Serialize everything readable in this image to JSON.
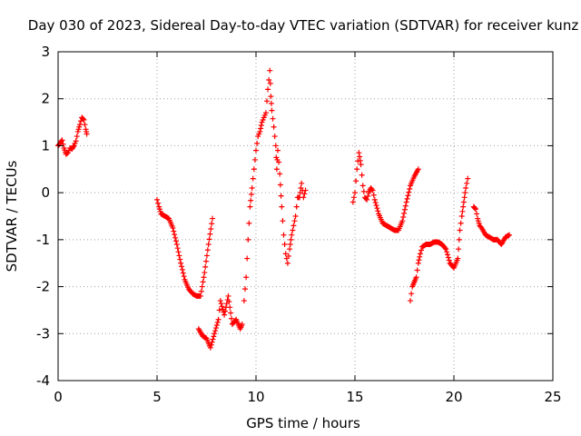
{
  "chart_data": {
    "type": "scatter",
    "title": "Day 030 of 2023, Sidereal Day-to-day VTEC variation (SDTVAR) for receiver kunz",
    "xlabel": "GPS time / hours",
    "ylabel": "SDTVAR / TECUs",
    "xlim": [
      0,
      25
    ],
    "ylim": [
      -4,
      3
    ],
    "xticks": [
      0,
      5,
      10,
      15,
      20,
      25
    ],
    "yticks": [
      -4,
      -3,
      -2,
      -1,
      0,
      1,
      2,
      3
    ],
    "grid": true,
    "marker": "+",
    "colors": {
      "series": "#ff0000",
      "grid": "#a0a0a0",
      "axis": "#000000"
    },
    "series": [
      {
        "name": "SDTVAR",
        "segments": [
          [
            [
              0.0,
              1.0
            ],
            [
              0.1,
              1.05
            ],
            [
              0.2,
              1.12
            ],
            [
              0.3,
              0.95
            ],
            [
              0.4,
              0.82
            ],
            [
              0.5,
              0.85
            ],
            [
              0.6,
              0.95
            ],
            [
              0.7,
              0.93
            ],
            [
              0.8,
              1.0
            ],
            [
              0.9,
              1.1
            ],
            [
              1.0,
              1.3
            ],
            [
              1.1,
              1.45
            ],
            [
              1.2,
              1.6
            ],
            [
              1.3,
              1.55
            ],
            [
              1.4,
              1.35
            ],
            [
              1.45,
              1.25
            ]
          ],
          [
            [
              5.0,
              -0.15
            ],
            [
              5.1,
              -0.3
            ],
            [
              5.2,
              -0.45
            ],
            [
              5.4,
              -0.5
            ],
            [
              5.6,
              -0.55
            ],
            [
              5.8,
              -0.75
            ],
            [
              6.0,
              -1.1
            ],
            [
              6.2,
              -1.5
            ],
            [
              6.4,
              -1.85
            ],
            [
              6.6,
              -2.05
            ],
            [
              6.8,
              -2.15
            ],
            [
              7.0,
              -2.2
            ],
            [
              7.2,
              -2.2
            ],
            [
              7.4,
              -1.7
            ],
            [
              7.6,
              -1.1
            ],
            [
              7.8,
              -0.55
            ]
          ],
          [
            [
              7.1,
              -2.9
            ],
            [
              7.3,
              -3.05
            ],
            [
              7.5,
              -3.1
            ],
            [
              7.7,
              -3.3
            ],
            [
              7.9,
              -3.0
            ],
            [
              8.1,
              -2.7
            ],
            [
              8.2,
              -2.3
            ],
            [
              8.4,
              -2.6
            ],
            [
              8.6,
              -2.2
            ],
            [
              8.8,
              -2.8
            ],
            [
              9.0,
              -2.7
            ],
            [
              9.2,
              -2.9
            ],
            [
              9.3,
              -2.8
            ]
          ],
          [
            [
              9.4,
              -2.3
            ],
            [
              9.5,
              -1.8
            ],
            [
              9.6,
              -1.0
            ],
            [
              9.7,
              -0.3
            ],
            [
              9.8,
              0.1
            ],
            [
              9.9,
              0.5
            ],
            [
              10.0,
              0.9
            ],
            [
              10.1,
              1.2
            ],
            [
              10.2,
              1.3
            ],
            [
              10.3,
              1.5
            ],
            [
              10.4,
              1.6
            ],
            [
              10.5,
              1.7
            ],
            [
              10.6,
              2.2
            ],
            [
              10.7,
              2.6
            ],
            [
              10.75,
              2.05
            ],
            [
              10.8,
              1.75
            ],
            [
              10.9,
              1.4
            ],
            [
              11.0,
              1.0
            ],
            [
              11.05,
              0.5
            ],
            [
              11.1,
              0.9
            ],
            [
              11.2,
              0.4
            ],
            [
              11.3,
              -0.3
            ],
            [
              11.4,
              -0.9
            ],
            [
              11.5,
              -1.3
            ],
            [
              11.6,
              -1.5
            ],
            [
              11.7,
              -1.2
            ],
            [
              11.8,
              -0.9
            ],
            [
              11.9,
              -0.7
            ],
            [
              12.0,
              -0.5
            ],
            [
              12.1,
              -0.1
            ],
            [
              12.2,
              -0.1
            ],
            [
              12.3,
              0.2
            ],
            [
              12.4,
              -0.1
            ],
            [
              12.5,
              0.05
            ]
          ],
          [
            [
              14.9,
              -0.2
            ],
            [
              15.0,
              0.0
            ],
            [
              15.1,
              0.5
            ],
            [
              15.2,
              0.85
            ],
            [
              15.3,
              0.6
            ],
            [
              15.4,
              0.15
            ],
            [
              15.5,
              -0.1
            ],
            [
              15.6,
              -0.15
            ],
            [
              15.7,
              0.0
            ],
            [
              15.8,
              0.1
            ],
            [
              15.9,
              0.05
            ],
            [
              16.0,
              -0.15
            ],
            [
              16.2,
              -0.45
            ],
            [
              16.4,
              -0.65
            ],
            [
              16.6,
              -0.7
            ],
            [
              16.8,
              -0.75
            ],
            [
              17.0,
              -0.8
            ],
            [
              17.2,
              -0.8
            ],
            [
              17.4,
              -0.6
            ],
            [
              17.6,
              -0.2
            ],
            [
              17.8,
              0.15
            ],
            [
              18.0,
              0.35
            ],
            [
              18.2,
              0.5
            ]
          ],
          [
            [
              17.8,
              -2.3
            ],
            [
              17.9,
              -2.0
            ],
            [
              18.0,
              -1.9
            ],
            [
              18.1,
              -1.8
            ],
            [
              18.2,
              -1.5
            ],
            [
              18.3,
              -1.3
            ],
            [
              18.4,
              -1.15
            ],
            [
              18.6,
              -1.1
            ],
            [
              18.8,
              -1.1
            ],
            [
              19.0,
              -1.05
            ],
            [
              19.2,
              -1.05
            ],
            [
              19.4,
              -1.1
            ],
            [
              19.6,
              -1.2
            ],
            [
              19.8,
              -1.5
            ],
            [
              20.0,
              -1.6
            ],
            [
              20.2,
              -1.4
            ],
            [
              20.3,
              -0.8
            ],
            [
              20.4,
              -0.5
            ],
            [
              20.5,
              -0.2
            ],
            [
              20.6,
              0.1
            ],
            [
              20.7,
              0.3
            ]
          ],
          [
            [
              21.0,
              -0.3
            ],
            [
              21.1,
              -0.35
            ],
            [
              21.2,
              -0.55
            ],
            [
              21.3,
              -0.7
            ],
            [
              21.4,
              -0.75
            ],
            [
              21.6,
              -0.9
            ],
            [
              21.8,
              -0.95
            ],
            [
              22.0,
              -1.0
            ],
            [
              22.2,
              -1.0
            ],
            [
              22.4,
              -1.1
            ],
            [
              22.6,
              -0.95
            ],
            [
              22.8,
              -0.9
            ]
          ]
        ]
      }
    ]
  }
}
